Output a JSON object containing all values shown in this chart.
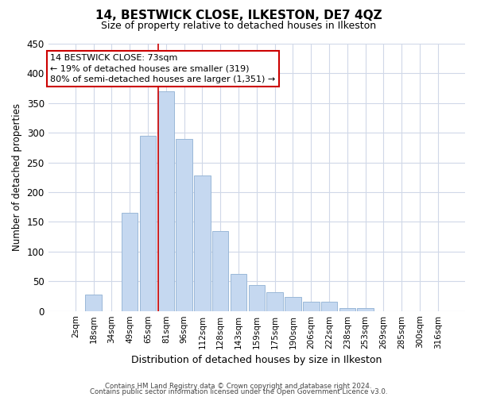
{
  "title": "14, BESTWICK CLOSE, ILKESTON, DE7 4QZ",
  "subtitle": "Size of property relative to detached houses in Ilkeston",
  "xlabel": "Distribution of detached houses by size in Ilkeston",
  "ylabel": "Number of detached properties",
  "bar_color": "#c5d8f0",
  "bar_edge_color": "#9ab8d8",
  "marker_line_color": "#cc0000",
  "categories": [
    "2sqm",
    "18sqm",
    "34sqm",
    "49sqm",
    "65sqm",
    "81sqm",
    "96sqm",
    "112sqm",
    "128sqm",
    "143sqm",
    "159sqm",
    "175sqm",
    "190sqm",
    "206sqm",
    "222sqm",
    "238sqm",
    "253sqm",
    "269sqm",
    "285sqm",
    "300sqm",
    "316sqm"
  ],
  "values": [
    0,
    28,
    0,
    165,
    295,
    370,
    290,
    228,
    135,
    62,
    44,
    32,
    24,
    15,
    16,
    5,
    5,
    0,
    0,
    0,
    0
  ],
  "ylim": [
    0,
    450
  ],
  "yticks": [
    0,
    50,
    100,
    150,
    200,
    250,
    300,
    350,
    400,
    450
  ],
  "marker_bin_index": 5,
  "annotation_line1": "14 BESTWICK CLOSE: 73sqm",
  "annotation_line2": "← 19% of detached houses are smaller (319)",
  "annotation_line3": "80% of semi-detached houses are larger (1,351) →",
  "footer_line1": "Contains HM Land Registry data © Crown copyright and database right 2024.",
  "footer_line2": "Contains public sector information licensed under the Open Government Licence v3.0.",
  "background_color": "#ffffff",
  "grid_color": "#d0d8e8"
}
